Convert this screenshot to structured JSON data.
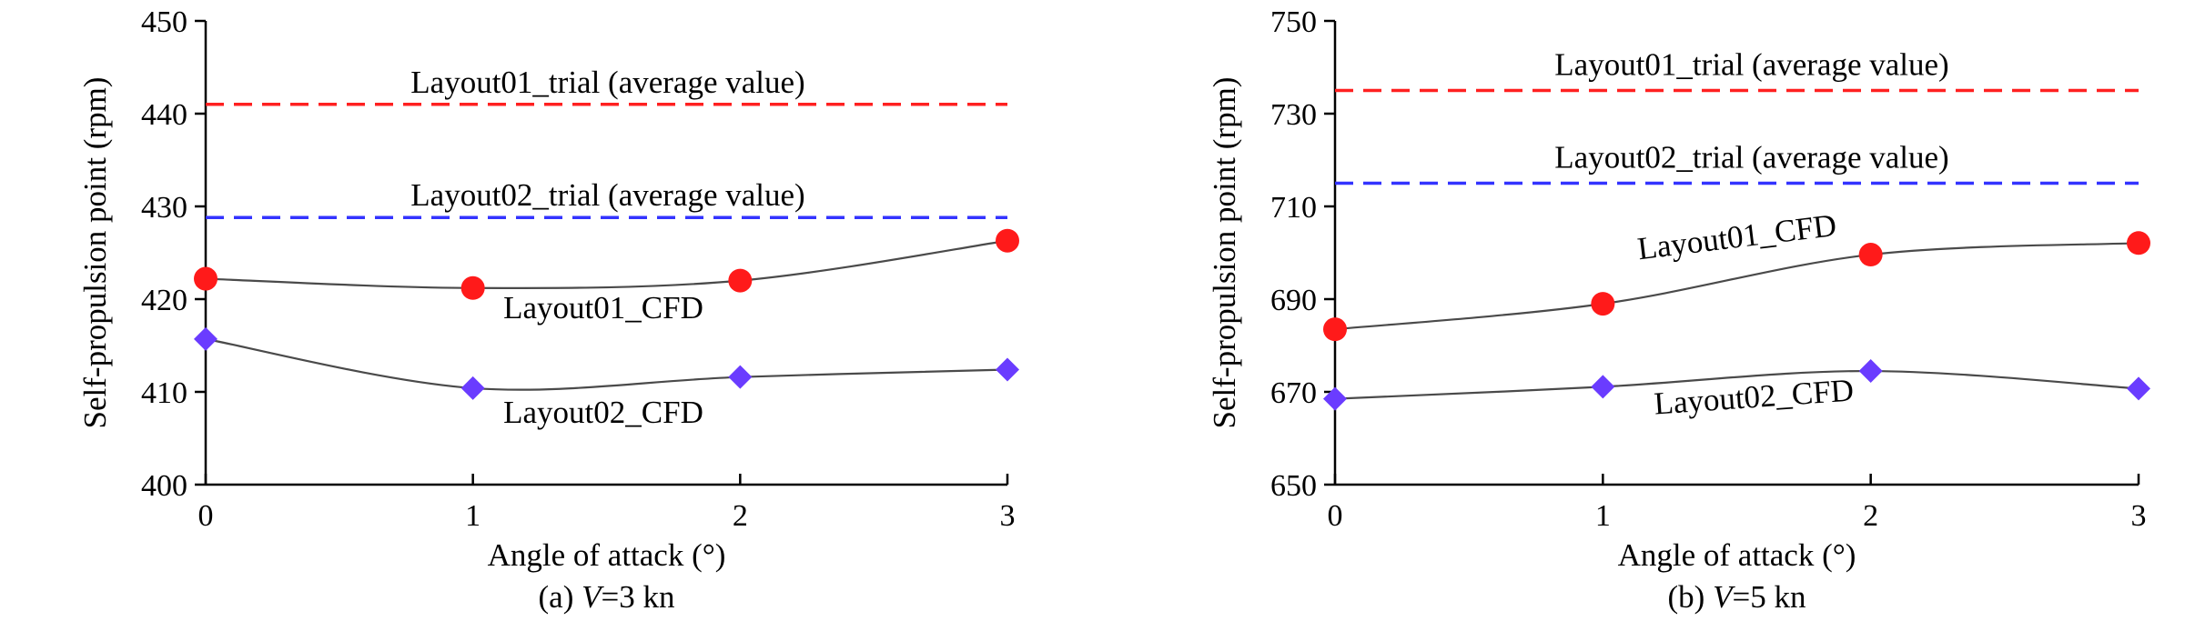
{
  "colors": {
    "trial01": "#ff2020",
    "trial02": "#3333ff",
    "cfd01_marker": "#ff1a1a",
    "cfd02_marker": "#6a3cff",
    "cfd_line": "#4a4a4a",
    "axis": "#000000"
  },
  "chart_data": [
    {
      "type": "line",
      "caption_prefix": "(a) ",
      "caption_var": "V",
      "caption_suffix": "=3 kn",
      "xlabel": "Angle of attack (°)",
      "ylabel": "Self-propulsion point (rpm)",
      "xlim": [
        0,
        3
      ],
      "ylim": [
        400,
        450
      ],
      "xticks": [
        "0",
        "1",
        "2",
        "3"
      ],
      "yticks": [
        "400",
        "410",
        "420",
        "430",
        "440",
        "450"
      ],
      "x": [
        0,
        1,
        2,
        3
      ],
      "series": [
        {
          "name": "Layout01_CFD",
          "marker": "circle",
          "values": [
            422.2,
            421.2,
            422.0,
            426.3
          ]
        },
        {
          "name": "Layout02_CFD",
          "marker": "diamond",
          "values": [
            415.7,
            410.4,
            411.6,
            412.4
          ]
        }
      ],
      "reference_lines": [
        {
          "name": "Layout01_trial (average value)",
          "value": 441.0
        },
        {
          "name": "Layout02_trial (average value)",
          "value": 428.8
        }
      ]
    },
    {
      "type": "line",
      "caption_prefix": "(b) ",
      "caption_var": "V",
      "caption_suffix": "=5 kn",
      "xlabel": "Angle of attack (°)",
      "ylabel": "Self-propulsion point (rpm)",
      "xlim": [
        0,
        3
      ],
      "ylim": [
        650,
        750
      ],
      "xticks": [
        "0",
        "1",
        "2",
        "3"
      ],
      "yticks": [
        "650",
        "670",
        "690",
        "710",
        "730",
        "750"
      ],
      "x": [
        0,
        1,
        2,
        3
      ],
      "series": [
        {
          "name": "Layout01_CFD",
          "marker": "circle",
          "values": [
            683.5,
            689.0,
            699.6,
            702.1
          ]
        },
        {
          "name": "Layout02_CFD",
          "marker": "diamond",
          "values": [
            668.5,
            671.1,
            674.5,
            670.7
          ]
        }
      ],
      "reference_lines": [
        {
          "name": "Layout01_trial (average value)",
          "value": 735.0
        },
        {
          "name": "Layout02_trial (average value)",
          "value": 715.0
        }
      ]
    }
  ]
}
